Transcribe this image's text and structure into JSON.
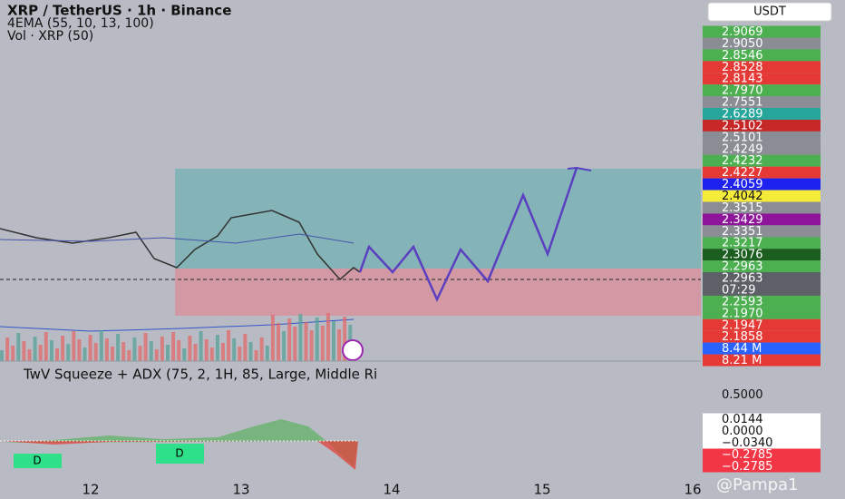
{
  "header": {
    "lines": [
      "XRP / TetherUS · 1h · Binance",
      "4EMA (55, 10, 13, 100)",
      "Vol · XRP (50)"
    ]
  },
  "price_scale": {
    "currency": "USDT",
    "labels": [
      {
        "text": "2.9069",
        "color": "#4caf50"
      },
      {
        "text": "2.9050",
        "color": "#8a8d94"
      },
      {
        "text": "2.8546",
        "color": "#4caf50"
      },
      {
        "text": "2.8528",
        "color": "#e53935"
      },
      {
        "text": "2.8143",
        "color": "#e53935"
      },
      {
        "text": "2.7970",
        "color": "#4caf50"
      },
      {
        "text": "2.7551",
        "color": "#8a8d94"
      },
      {
        "text": "2.6289",
        "color": "#26a69a"
      },
      {
        "text": "2.5102",
        "color": "#c62828"
      },
      {
        "text": "2.5101",
        "color": "#8a8d94"
      },
      {
        "text": "2.4249",
        "color": "#8a8d94"
      },
      {
        "text": "2.4232",
        "color": "#4caf50"
      },
      {
        "text": "2.4227",
        "color": "#e53935"
      },
      {
        "text": "2.4059",
        "color": "#1e22f0"
      },
      {
        "text": "2.4042",
        "color": "#f5eb3b"
      },
      {
        "text": "2.3515",
        "color": "#8a8d94"
      },
      {
        "text": "2.3429",
        "color": "#8e1599"
      },
      {
        "text": "2.3351",
        "color": "#8a8d94"
      },
      {
        "text": "2.3217",
        "color": "#4caf50"
      },
      {
        "text": "2.3076",
        "color": "#1b5e20"
      },
      {
        "text": "2.2963",
        "color": "#4caf50"
      },
      {
        "text": "2.2963",
        "color": "#5d6066"
      },
      {
        "text": "07:29",
        "color": "#5d6066"
      },
      {
        "text": "2.2593",
        "color": "#4caf50"
      },
      {
        "text": "2.1970",
        "color": "#4caf50"
      },
      {
        "text": "2.1947",
        "color": "#e53935"
      },
      {
        "text": "2.1858",
        "color": "#e53935"
      },
      {
        "text": "8.44 M",
        "color": "#2962ff"
      },
      {
        "text": "8.21 M",
        "color": "#e53935"
      }
    ]
  },
  "indicator": {
    "title": "TwV Squeeze + ADX (75, 2, 1H, 85, Large, Middle Ri",
    "scale": [
      {
        "text": "0.5000",
        "color": null
      },
      {
        "text": "0.0144",
        "color": "#ffffff"
      },
      {
        "text": "0.0000",
        "color": "#ffffff"
      },
      {
        "text": "−0.0340",
        "color": "#ffffff"
      },
      {
        "text": "−0.2785",
        "color": "#f23645"
      },
      {
        "text": "−0.2785",
        "color": "#f23645"
      }
    ],
    "markers": [
      "D",
      "D"
    ]
  },
  "x_axis": {
    "labels": [
      "12",
      "13",
      "14",
      "15",
      "16"
    ]
  },
  "watermark": "@Pampa1"
}
